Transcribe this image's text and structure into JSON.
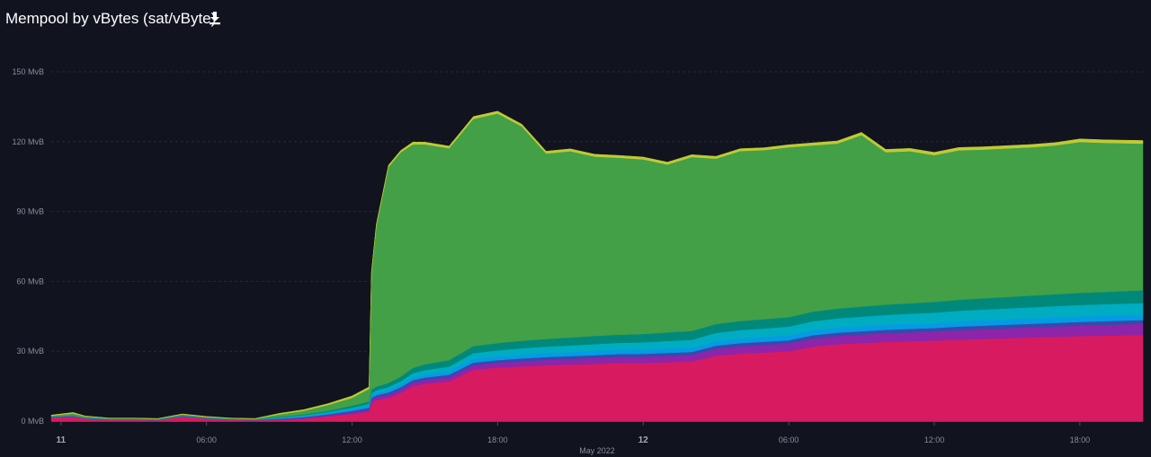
{
  "header": {
    "title": "Mempool by vBytes (sat/vByte)",
    "download_icon": "download-icon"
  },
  "chart_data": {
    "type": "area",
    "stacked": true,
    "title": "Mempool by vBytes (sat/vByte)",
    "xlabel": "May 2022",
    "ylabel": "",
    "ylim": [
      0,
      150
    ],
    "y_unit": "MvB",
    "y_ticks": [
      {
        "value": 0,
        "label": "0 MvB"
      },
      {
        "value": 30,
        "label": "30 MvB"
      },
      {
        "value": 60,
        "label": "60 MvB"
      },
      {
        "value": 90,
        "label": "90 MvB"
      },
      {
        "value": 120,
        "label": "120 MvB"
      },
      {
        "value": 150,
        "label": "150 MvB"
      }
    ],
    "x_ticks": [
      {
        "value": 0,
        "label": "11",
        "bold": true
      },
      {
        "value": 6,
        "label": "06:00",
        "bold": false
      },
      {
        "value": 12,
        "label": "12:00",
        "bold": false
      },
      {
        "value": 18,
        "label": "18:00",
        "bold": false
      },
      {
        "value": 24,
        "label": "12",
        "bold": true
      },
      {
        "value": 30,
        "label": "06:00",
        "bold": false
      },
      {
        "value": 36,
        "label": "12:00",
        "bold": false
      },
      {
        "value": 42,
        "label": "18:00",
        "bold": false
      }
    ],
    "x_range": [
      -0.4,
      44.6
    ],
    "grid": true,
    "x": [
      -0.4,
      0.5,
      1.0,
      2.0,
      3.0,
      4.0,
      5.0,
      6.0,
      7.0,
      8.0,
      9.0,
      10.0,
      11.0,
      12.0,
      12.7,
      12.8,
      13.0,
      13.5,
      14.0,
      14.5,
      15.0,
      16.0,
      17.0,
      18.0,
      19.0,
      20.0,
      21.0,
      22.0,
      23.0,
      24.0,
      25.0,
      26.0,
      27.0,
      28.0,
      29.0,
      30.0,
      31.0,
      32.0,
      33.0,
      34.0,
      35.0,
      36.0,
      37.0,
      38.0,
      39.0,
      40.0,
      41.0,
      42.0,
      43.0,
      44.6
    ],
    "series": [
      {
        "color": "#d81b60",
        "values": [
          1.5,
          2.0,
          1.0,
          0.5,
          0.5,
          0.3,
          2.0,
          1.0,
          0.5,
          0.3,
          0.5,
          1.0,
          2.0,
          3.0,
          4.0,
          8.0,
          9.0,
          10.0,
          12.0,
          15.0,
          16.0,
          17.0,
          22.0,
          23.0,
          23.5,
          24.0,
          24.3,
          24.6,
          25.0,
          25.0,
          25.3,
          25.6,
          28.0,
          29.0,
          29.5,
          30.0,
          32.0,
          33.0,
          33.5,
          34.0,
          34.3,
          34.6,
          35.0,
          35.3,
          35.6,
          35.9,
          36.2,
          36.5,
          36.7,
          37.0
        ]
      },
      {
        "color": "#8e24aa",
        "values": [
          0.1,
          0.1,
          0.1,
          0.1,
          0.1,
          0.1,
          0.1,
          0.1,
          0.1,
          0.1,
          0.3,
          0.4,
          0.5,
          0.8,
          1.0,
          1.2,
          1.3,
          1.4,
          1.5,
          1.6,
          1.7,
          1.8,
          2.0,
          2.1,
          2.2,
          2.3,
          2.4,
          2.5,
          2.5,
          2.6,
          2.7,
          2.8,
          3.0,
          3.1,
          3.2,
          3.3,
          3.4,
          3.5,
          3.6,
          3.7,
          3.8,
          3.9,
          4.0,
          4.1,
          4.2,
          4.3,
          4.4,
          4.5,
          4.6,
          4.8
        ]
      },
      {
        "color": "#3949ab",
        "values": [
          0.1,
          0.1,
          0.1,
          0.1,
          0.1,
          0.1,
          0.1,
          0.1,
          0.1,
          0.1,
          0.2,
          0.3,
          0.4,
          0.6,
          0.7,
          0.8,
          0.8,
          0.9,
          1.0,
          1.0,
          1.0,
          1.1,
          1.1,
          1.1,
          1.2,
          1.2,
          1.2,
          1.2,
          1.3,
          1.3,
          1.3,
          1.3,
          1.4,
          1.4,
          1.4,
          1.4,
          1.5,
          1.5,
          1.5,
          1.5,
          1.5,
          1.5,
          1.6,
          1.6,
          1.6,
          1.6,
          1.6,
          1.6,
          1.6,
          1.6
        ]
      },
      {
        "color": "#039be5",
        "values": [
          0.1,
          0.1,
          0.1,
          0.1,
          0.1,
          0.1,
          0.1,
          0.1,
          0.1,
          0.1,
          0.3,
          0.4,
          0.5,
          0.7,
          0.8,
          1.0,
          1.0,
          1.1,
          1.2,
          1.3,
          1.4,
          1.5,
          1.6,
          1.6,
          1.7,
          1.7,
          1.7,
          1.8,
          1.8,
          1.8,
          1.9,
          1.9,
          2.0,
          2.0,
          2.0,
          2.1,
          2.1,
          2.1,
          2.2,
          2.2,
          2.2,
          2.2,
          2.3,
          2.3,
          2.3,
          2.3,
          2.3,
          2.3,
          2.3,
          2.3
        ]
      },
      {
        "color": "#00acc1",
        "values": [
          0.1,
          0.1,
          0.1,
          0.1,
          0.1,
          0.1,
          0.1,
          0.1,
          0.1,
          0.1,
          0.3,
          0.4,
          0.5,
          0.7,
          0.9,
          1.0,
          1.1,
          1.2,
          1.4,
          1.6,
          1.8,
          2.0,
          2.5,
          2.6,
          2.7,
          2.8,
          2.9,
          3.0,
          3.0,
          3.1,
          3.2,
          3.3,
          3.5,
          3.6,
          3.7,
          3.8,
          3.9,
          4.0,
          4.1,
          4.2,
          4.3,
          4.4,
          4.5,
          4.6,
          4.7,
          4.8,
          4.9,
          5.0,
          5.0,
          5.0
        ]
      },
      {
        "color": "#00897b",
        "values": [
          0.1,
          0.1,
          0.1,
          0.1,
          0.1,
          0.1,
          0.1,
          0.1,
          0.1,
          0.1,
          0.3,
          0.4,
          0.5,
          0.8,
          1.0,
          1.5,
          1.6,
          1.8,
          2.0,
          2.3,
          2.5,
          2.8,
          3.0,
          3.1,
          3.2,
          3.3,
          3.4,
          3.5,
          3.5,
          3.6,
          3.7,
          3.8,
          3.8,
          3.9,
          4.0,
          4.0,
          4.1,
          4.2,
          4.3,
          4.4,
          4.5,
          4.6,
          4.7,
          4.8,
          4.9,
          5.0,
          5.1,
          5.2,
          5.3,
          5.5
        ]
      },
      {
        "color": "#43a047",
        "values": [
          0.3,
          0.8,
          0.5,
          0.2,
          0.2,
          0.2,
          0.4,
          0.3,
          0.2,
          0.2,
          1.0,
          1.5,
          2.5,
          3.4,
          5.5,
          50.0,
          69.0,
          92.7,
          96.3,
          96.0,
          94.5,
          91.0,
          97.6,
          98.6,
          92.0,
          79.6,
          80.0,
          77.0,
          76.0,
          75.0,
          72.1,
          74.7,
          71.0,
          73.0,
          72.6,
          73.0,
          71.4,
          70.9,
          73.6,
          65.5,
          65.3,
          63.0,
          64.2,
          63.9,
          63.8,
          63.7,
          63.9,
          64.8,
          64.0,
          63.0
        ]
      },
      {
        "color": "#c0ca33",
        "values": [
          0.3,
          0.4,
          0.2,
          0.1,
          0.1,
          0.1,
          0.2,
          0.2,
          0.1,
          0.1,
          0.4,
          0.5,
          0.6,
          0.8,
          0.8,
          0.8,
          0.8,
          0.8,
          0.8,
          1.0,
          0.9,
          0.9,
          1.0,
          1.0,
          1.0,
          1.0,
          1.0,
          1.0,
          1.0,
          1.0,
          1.0,
          1.0,
          1.0,
          1.0,
          1.0,
          1.1,
          1.1,
          1.1,
          1.2,
          1.2,
          1.2,
          1.2,
          1.2,
          1.2,
          1.2,
          1.2,
          1.2,
          1.3,
          1.3,
          1.3
        ]
      }
    ]
  }
}
